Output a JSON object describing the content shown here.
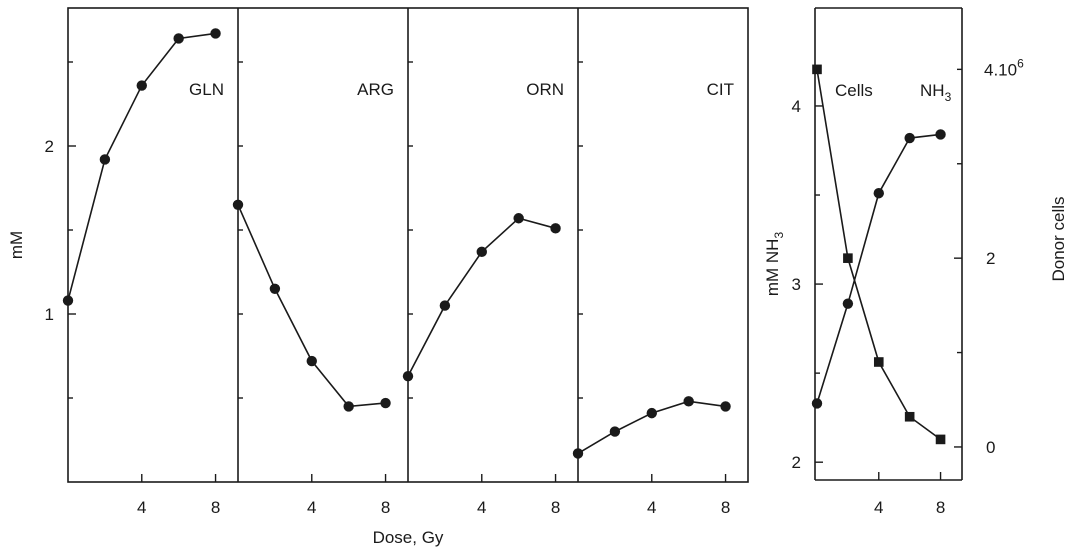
{
  "chart_data": [
    {
      "type": "line",
      "title": "",
      "xlabel": "Dose, Gy",
      "ylabel": "mM",
      "xlim": [
        0,
        9
      ],
      "ylim": [
        0,
        2.8
      ],
      "x_ticks": [
        "4",
        "8"
      ],
      "y_ticks": [
        "1",
        "2"
      ],
      "panels": [
        {
          "label": "GLN",
          "x": [
            0,
            2,
            4,
            6,
            8
          ],
          "values": [
            1.08,
            1.92,
            2.36,
            2.64,
            2.67
          ]
        },
        {
          "label": "ARG",
          "x": [
            0,
            2,
            4,
            6,
            8
          ],
          "values": [
            1.65,
            1.15,
            0.72,
            0.45,
            0.47
          ]
        },
        {
          "label": "ORN",
          "x": [
            0,
            2,
            4,
            6,
            8
          ],
          "values": [
            0.63,
            1.05,
            1.37,
            1.57,
            1.51
          ]
        },
        {
          "label": "CIT",
          "x": [
            0,
            2,
            4,
            6,
            8
          ],
          "values": [
            0.17,
            0.3,
            0.41,
            0.48,
            0.45
          ]
        }
      ]
    },
    {
      "type": "line",
      "title": "",
      "xlim": [
        0,
        9
      ],
      "left_axis": {
        "label_main": "mM NH",
        "label_sub": "3",
        "range": [
          1.9,
          4.55
        ],
        "ticks": [
          "2",
          "3",
          "4"
        ]
      },
      "right_axis": {
        "label": "Donor cells",
        "range_millions": [
          -0.35,
          4.65
        ],
        "ticks": [
          "0",
          "2"
        ],
        "top_label_main": "4.10",
        "top_label_sup": "6"
      },
      "series": [
        {
          "name": "NH",
          "name_sub": "3",
          "marker": "circle",
          "axis": "left",
          "x": [
            0,
            2,
            4,
            6,
            8
          ],
          "values": [
            2.33,
            2.89,
            3.51,
            3.82,
            3.84
          ]
        },
        {
          "name": "Cells",
          "marker": "square",
          "axis": "right",
          "x": [
            0,
            2,
            4,
            6,
            8
          ],
          "values": [
            4.0,
            2.0,
            0.9,
            0.32,
            0.08
          ]
        }
      ]
    }
  ]
}
